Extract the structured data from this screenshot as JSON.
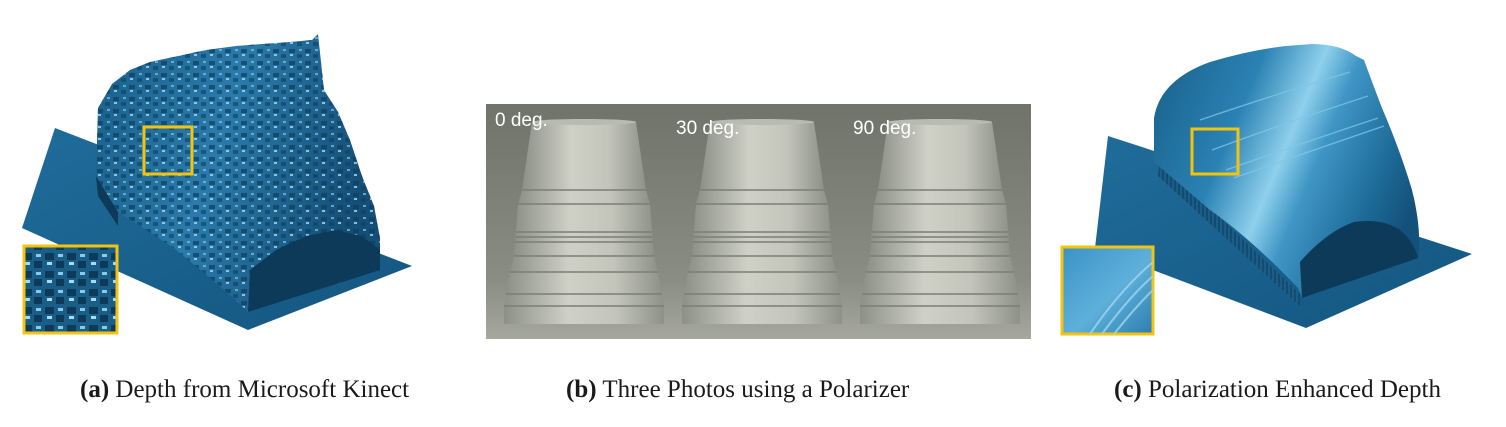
{
  "figure": {
    "panel_a": {
      "caption_tag": "(a)",
      "caption_text": "Depth from Microsoft Kinect"
    },
    "panel_b": {
      "caption_tag": "(b)",
      "caption_text": "Three Photos using a Polarizer",
      "photo_labels": [
        "0 deg.",
        "30 deg.",
        "90 deg."
      ]
    },
    "panel_c": {
      "caption_tag": "(c)",
      "caption_text": "Polarization Enhanced Depth"
    }
  },
  "colors": {
    "surface_blue": "#1e6591",
    "surface_dark": "#0c3a58",
    "highlight": "#8fd0ec",
    "inset_frame": "#f2c40f",
    "photo_background": "#7f8278",
    "cup": "#c2c4ba"
  }
}
